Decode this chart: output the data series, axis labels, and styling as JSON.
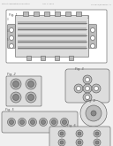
{
  "bg_color": "#f0f0f0",
  "header_text_left": "Patent Application Publication",
  "header_text_mid": "Apr. 7, 2011",
  "header_text_right": "US 2011/0000847 A1",
  "fig1_label": "Fig. 1",
  "fig2_label": "Fig. 2",
  "fig3_label": "Fig. 3",
  "fig4_label": "Fig. 4",
  "fig5_label": "Fig. 5",
  "fig6_label": "Fig. 6",
  "line_color": "#555555",
  "fill_color": "#dddddd",
  "dark_fill": "#888888",
  "medium_fill": "#bbbbbb"
}
